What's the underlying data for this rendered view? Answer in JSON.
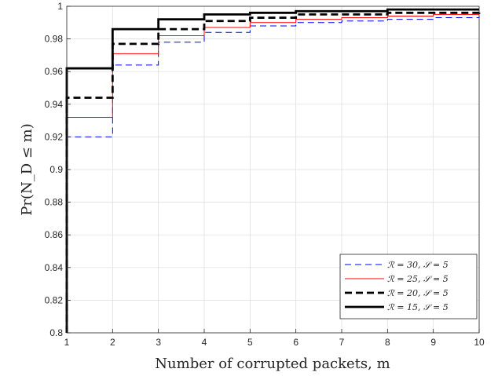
{
  "chart_data": {
    "type": "line",
    "step": true,
    "xlabel": "Number of corrupted packets, m",
    "ylabel": "Pr(N_D ≤ m)",
    "xlim": [
      1,
      10
    ],
    "ylim": [
      0.8,
      1
    ],
    "xticks": [
      "1",
      "2",
      "3",
      "4",
      "5",
      "6",
      "7",
      "8",
      "9",
      "10"
    ],
    "yticks": [
      "0.8",
      "0.82",
      "0.84",
      "0.86",
      "0.88",
      "0.9",
      "0.92",
      "0.94",
      "0.96",
      "0.98",
      "1"
    ],
    "grid": true,
    "legend_position": "bottom-right",
    "x": [
      1,
      2,
      3,
      4,
      5,
      6,
      7,
      8,
      9,
      10
    ],
    "series": [
      {
        "name": "ℛ = 30, 𝒮 = 5",
        "color": "#0000ff",
        "line_style": "dashed-thin",
        "values": [
          0.92,
          0.964,
          0.978,
          0.984,
          0.988,
          0.99,
          0.991,
          0.992,
          0.993,
          0.994
        ]
      },
      {
        "name": "ℛ = 25, 𝒮 = 5",
        "color": "#ff0000",
        "line_style": "solid-thin",
        "values": [
          0.932,
          0.971,
          0.982,
          0.987,
          0.99,
          0.992,
          0.993,
          0.994,
          0.995,
          0.995
        ]
      },
      {
        "name": "ℛ = 20, 𝒮 = 5",
        "color": "#000000",
        "line_style": "dashed-thick",
        "values": [
          0.944,
          0.977,
          0.986,
          0.991,
          0.993,
          0.995,
          0.995,
          0.996,
          0.996,
          0.997
        ]
      },
      {
        "name": "ℛ = 15, 𝒮 = 5",
        "color": "#000000",
        "line_style": "solid-thick",
        "values": [
          0.962,
          0.986,
          0.992,
          0.995,
          0.996,
          0.997,
          0.997,
          0.998,
          0.998,
          0.998
        ]
      }
    ]
  }
}
